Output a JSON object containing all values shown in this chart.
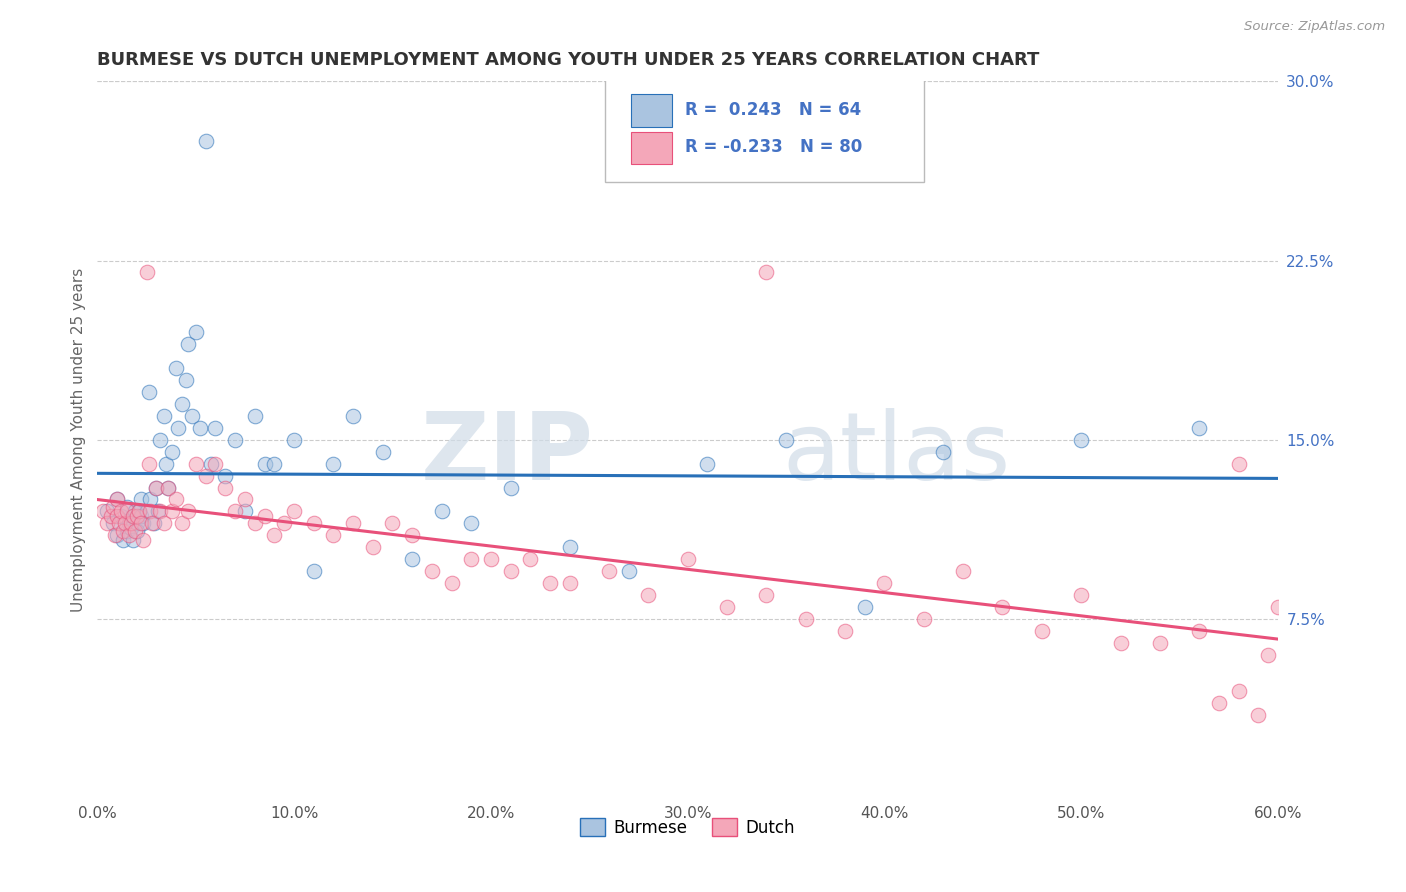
{
  "title": "BURMESE VS DUTCH UNEMPLOYMENT AMONG YOUTH UNDER 25 YEARS CORRELATION CHART",
  "source": "Source: ZipAtlas.com",
  "ylabel": "Unemployment Among Youth under 25 years",
  "xlim": [
    0.0,
    0.6
  ],
  "ylim": [
    0.0,
    0.3
  ],
  "xticks": [
    0.0,
    0.1,
    0.2,
    0.3,
    0.4,
    0.5,
    0.6
  ],
  "yticks": [
    0.075,
    0.15,
    0.225,
    0.3
  ],
  "ytick_labels": [
    "7.5%",
    "15.0%",
    "22.5%",
    "30.0%"
  ],
  "xtick_labels": [
    "0.0%",
    "10.0%",
    "20.0%",
    "30.0%",
    "40.0%",
    "50.0%",
    "60.0%"
  ],
  "burmese_color": "#aac4e0",
  "dutch_color": "#f4a7b9",
  "line_burmese_color": "#2870b8",
  "line_dutch_color": "#e8507a",
  "R_burmese": 0.243,
  "N_burmese": 64,
  "R_dutch": -0.233,
  "N_dutch": 80,
  "watermark_zip": "ZIP",
  "watermark_atlas": "atlas",
  "background_color": "#ffffff",
  "grid_color": "#cccccc",
  "title_color": "#333333",
  "axis_label_color": "#666666",
  "tick_label_color_right": "#4472c4",
  "legend_burmese_text": "Burmese",
  "legend_dutch_text": "Dutch",
  "marker_size": 110,
  "marker_alpha": 0.55,
  "burmese_x": [
    0.005,
    0.008,
    0.01,
    0.01,
    0.012,
    0.013,
    0.015,
    0.015,
    0.016,
    0.017,
    0.018,
    0.018,
    0.019,
    0.02,
    0.02,
    0.021,
    0.022,
    0.022,
    0.023,
    0.025,
    0.026,
    0.027,
    0.029,
    0.03,
    0.031,
    0.032,
    0.034,
    0.035,
    0.036,
    0.038,
    0.04,
    0.041,
    0.043,
    0.045,
    0.046,
    0.048,
    0.05,
    0.052,
    0.055,
    0.058,
    0.06,
    0.065,
    0.07,
    0.075,
    0.08,
    0.085,
    0.09,
    0.1,
    0.11,
    0.12,
    0.13,
    0.145,
    0.16,
    0.175,
    0.19,
    0.21,
    0.24,
    0.27,
    0.31,
    0.35,
    0.39,
    0.43,
    0.5,
    0.56
  ],
  "burmese_y": [
    0.12,
    0.115,
    0.125,
    0.11,
    0.118,
    0.108,
    0.112,
    0.122,
    0.115,
    0.113,
    0.108,
    0.118,
    0.12,
    0.115,
    0.112,
    0.12,
    0.118,
    0.125,
    0.115,
    0.12,
    0.17,
    0.125,
    0.115,
    0.13,
    0.12,
    0.15,
    0.16,
    0.14,
    0.13,
    0.145,
    0.18,
    0.155,
    0.165,
    0.175,
    0.19,
    0.16,
    0.195,
    0.155,
    0.275,
    0.14,
    0.155,
    0.135,
    0.15,
    0.12,
    0.16,
    0.14,
    0.14,
    0.15,
    0.095,
    0.14,
    0.16,
    0.145,
    0.1,
    0.12,
    0.115,
    0.13,
    0.105,
    0.095,
    0.14,
    0.15,
    0.08,
    0.145,
    0.15,
    0.155
  ],
  "dutch_x": [
    0.003,
    0.005,
    0.007,
    0.008,
    0.009,
    0.01,
    0.01,
    0.011,
    0.012,
    0.013,
    0.014,
    0.015,
    0.016,
    0.017,
    0.018,
    0.019,
    0.02,
    0.021,
    0.022,
    0.023,
    0.025,
    0.026,
    0.027,
    0.028,
    0.03,
    0.032,
    0.034,
    0.036,
    0.038,
    0.04,
    0.043,
    0.046,
    0.05,
    0.055,
    0.06,
    0.065,
    0.07,
    0.075,
    0.08,
    0.085,
    0.09,
    0.095,
    0.1,
    0.11,
    0.12,
    0.13,
    0.14,
    0.15,
    0.16,
    0.17,
    0.18,
    0.19,
    0.2,
    0.21,
    0.22,
    0.23,
    0.24,
    0.26,
    0.28,
    0.3,
    0.32,
    0.34,
    0.36,
    0.38,
    0.4,
    0.42,
    0.44,
    0.46,
    0.48,
    0.5,
    0.52,
    0.54,
    0.56,
    0.57,
    0.58,
    0.59,
    0.595,
    0.6,
    0.34,
    0.58
  ],
  "dutch_y": [
    0.12,
    0.115,
    0.118,
    0.122,
    0.11,
    0.125,
    0.118,
    0.115,
    0.12,
    0.112,
    0.115,
    0.12,
    0.11,
    0.115,
    0.118,
    0.112,
    0.118,
    0.12,
    0.115,
    0.108,
    0.22,
    0.14,
    0.12,
    0.115,
    0.13,
    0.12,
    0.115,
    0.13,
    0.12,
    0.125,
    0.115,
    0.12,
    0.14,
    0.135,
    0.14,
    0.13,
    0.12,
    0.125,
    0.115,
    0.118,
    0.11,
    0.115,
    0.12,
    0.115,
    0.11,
    0.115,
    0.105,
    0.115,
    0.11,
    0.095,
    0.09,
    0.1,
    0.1,
    0.095,
    0.1,
    0.09,
    0.09,
    0.095,
    0.085,
    0.1,
    0.08,
    0.085,
    0.075,
    0.07,
    0.09,
    0.075,
    0.095,
    0.08,
    0.07,
    0.085,
    0.065,
    0.065,
    0.07,
    0.04,
    0.045,
    0.035,
    0.06,
    0.08,
    0.22,
    0.14
  ]
}
